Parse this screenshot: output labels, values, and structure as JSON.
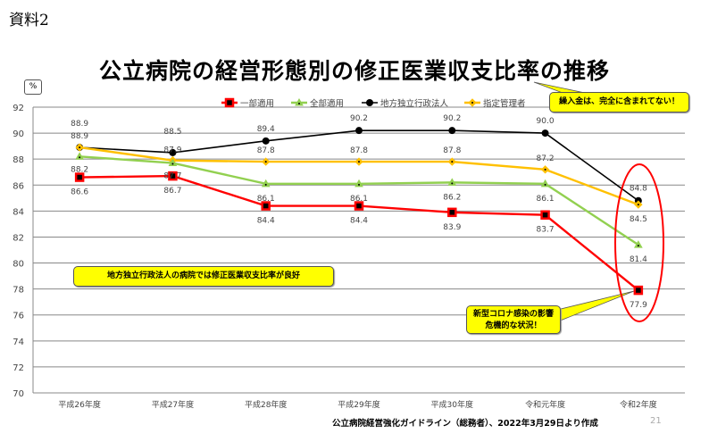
{
  "doc_label": "資料2",
  "unit": "%",
  "source": "公立病院経営強化ガイドライン（総務者）、2022年3月29日より作成",
  "page_number": "21",
  "callouts": {
    "transfer": "繰入金は、完全に含まれてない！",
    "independent": "地方独立行政法人の病院では修正医業収支比率が良好",
    "corona_line1": "新型コロナ感染の影響",
    "corona_line2": "危機的な状況！"
  },
  "chart_data": {
    "type": "line",
    "title": "公立病院の経営形態別の修正医業収支比率の推移",
    "xlabel": "",
    "ylabel": "%",
    "ylim": [
      70,
      92
    ],
    "yticks": [
      70,
      72,
      74,
      76,
      78,
      80,
      82,
      84,
      86,
      88,
      90,
      92
    ],
    "grid": true,
    "legend_position": "top",
    "categories": [
      "平成26年度",
      "平成27年度",
      "平成28年度",
      "平成29年度",
      "平成30年度",
      "令和元年度",
      "令和2年度"
    ],
    "series": [
      {
        "name": "一部適用",
        "color": "#ff0000",
        "marker": "square",
        "values": [
          86.6,
          86.7,
          84.4,
          84.4,
          83.9,
          83.7,
          77.9
        ]
      },
      {
        "name": "全部適用",
        "color": "#92d050",
        "marker": "triangle",
        "values": [
          88.2,
          87.7,
          86.1,
          86.1,
          86.2,
          86.1,
          81.4
        ]
      },
      {
        "name": "地方独立行政法人",
        "color": "#000000",
        "marker": "circle",
        "values": [
          88.9,
          88.5,
          89.4,
          90.2,
          90.2,
          90.0,
          84.8
        ]
      },
      {
        "name": "指定管理者",
        "color": "#ffc000",
        "marker": "diamond",
        "values": [
          88.9,
          87.9,
          87.8,
          87.8,
          87.8,
          87.2,
          84.5
        ]
      }
    ]
  }
}
